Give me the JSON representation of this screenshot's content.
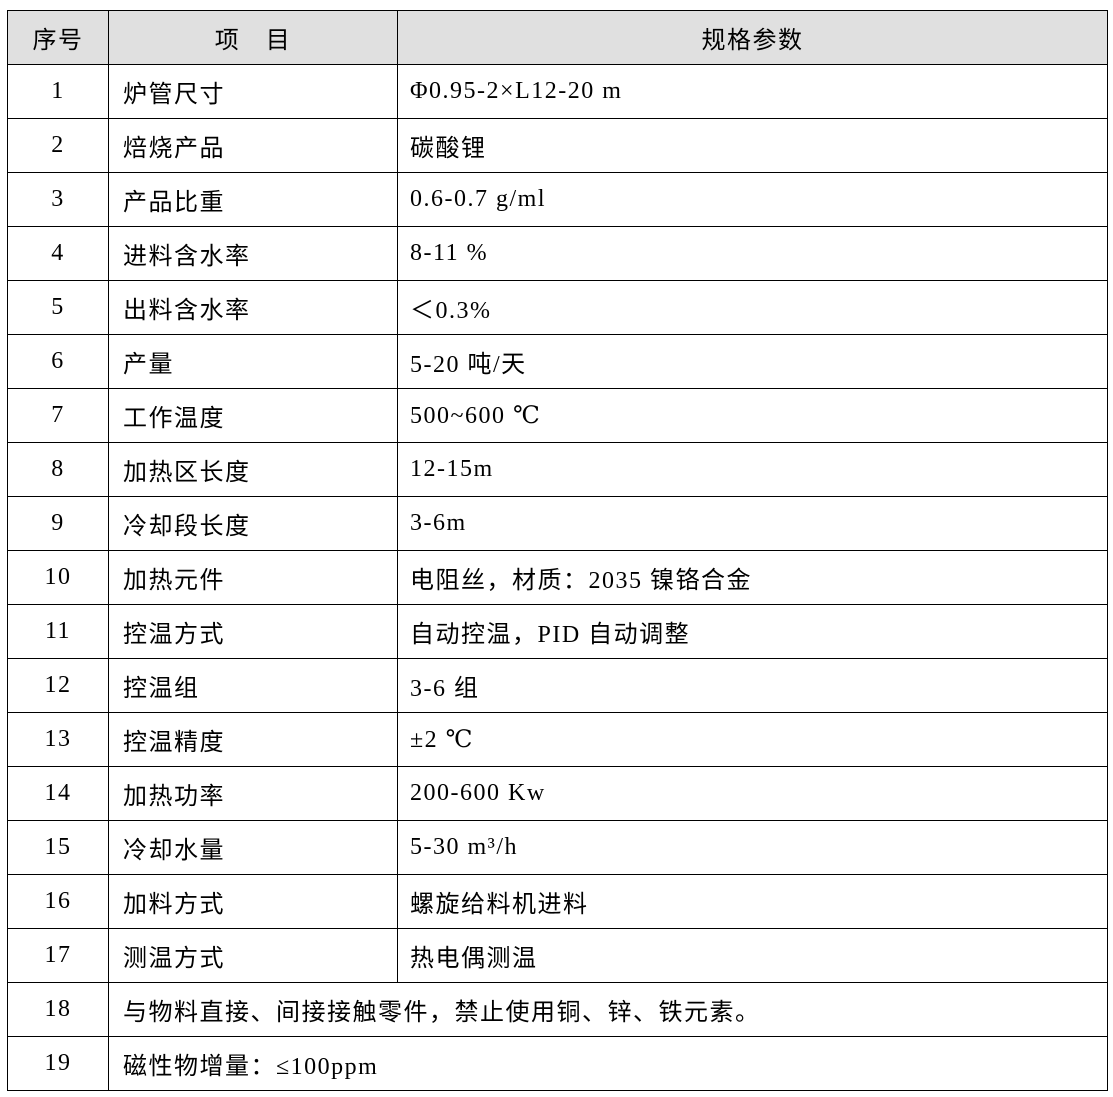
{
  "header": {
    "index": "序号",
    "item": "项　目",
    "spec": "规格参数"
  },
  "header_bg": "#e0e0e0",
  "rows": [
    {
      "no": "1",
      "item": "炉管尺寸",
      "spec": "Φ0.95-2×L12-20 m"
    },
    {
      "no": "2",
      "item": "焙烧产品",
      "spec": "碳酸锂"
    },
    {
      "no": "3",
      "item": "产品比重",
      "spec": "0.6-0.7 g/ml"
    },
    {
      "no": "4",
      "item": "进料含水率",
      "spec": "8-11 %"
    },
    {
      "no": "5",
      "item": "出料含水率",
      "spec": "＜0.3%"
    },
    {
      "no": "6",
      "item": "产量",
      "spec": "5-20 吨/天"
    },
    {
      "no": "7",
      "item": "工作温度",
      "spec": "500~600 ℃"
    },
    {
      "no": "8",
      "item": "加热区长度",
      "spec": "12-15m"
    },
    {
      "no": "9",
      "item": "冷却段长度",
      "spec": "3-6m"
    },
    {
      "no": "10",
      "item": "加热元件",
      "spec": "电阻丝，材质：2035 镍铬合金"
    },
    {
      "no": "11",
      "item": "控温方式",
      "spec": "自动控温，PID 自动调整"
    },
    {
      "no": "12",
      "item": "控温组",
      "spec": "3-6 组"
    },
    {
      "no": "13",
      "item": "控温精度",
      "spec": "±2 ℃"
    },
    {
      "no": "14",
      "item": "加热功率",
      "spec": "200-600 Kw"
    },
    {
      "no": "15",
      "item": "冷却水量",
      "spec": "5-30 m³/h"
    },
    {
      "no": "16",
      "item": "加料方式",
      "spec": "螺旋给料机进料"
    },
    {
      "no": "17",
      "item": "测温方式",
      "spec": "热电偶测温"
    }
  ],
  "merged_rows": [
    {
      "no": "18",
      "text": "与物料直接、间接接触零件，禁止使用铜、锌、铁元素。"
    },
    {
      "no": "19",
      "text": "磁性物增量：≤100ppm"
    }
  ]
}
